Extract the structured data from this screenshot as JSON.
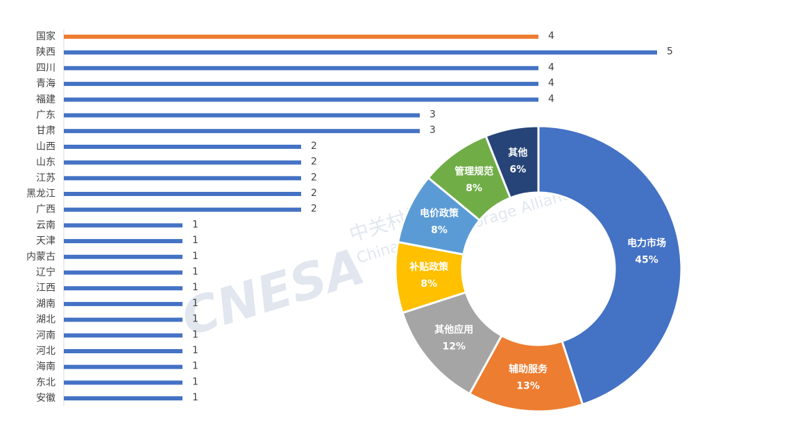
{
  "watermark": {
    "logo": "CNESA",
    "name": "中关村储能产业技术联盟",
    "english": "China Energy Storage Alliance"
  },
  "chart_data": [
    {
      "type": "bar",
      "orientation": "horizontal",
      "categories": [
        "国家",
        "陕西",
        "四川",
        "青海",
        "福建",
        "广东",
        "甘肃",
        "山西",
        "山东",
        "江苏",
        "黑龙江",
        "广西",
        "云南",
        "天津",
        "内蒙古",
        "辽宁",
        "江西",
        "湖南",
        "湖北",
        "河南",
        "河北",
        "海南",
        "东北",
        "安徽"
      ],
      "values": [
        4,
        5,
        4,
        4,
        4,
        3,
        3,
        2,
        2,
        2,
        2,
        2,
        1,
        1,
        1,
        1,
        1,
        1,
        1,
        1,
        1,
        1,
        1,
        1
      ],
      "colors": [
        "#ed7d31",
        "#4472c4",
        "#4472c4",
        "#4472c4",
        "#4472c4",
        "#4472c4",
        "#4472c4",
        "#4472c4",
        "#4472c4",
        "#4472c4",
        "#4472c4",
        "#4472c4",
        "#4472c4",
        "#4472c4",
        "#4472c4",
        "#4472c4",
        "#4472c4",
        "#4472c4",
        "#4472c4",
        "#4472c4",
        "#4472c4",
        "#4472c4",
        "#4472c4",
        "#4472c4"
      ],
      "xlim": [
        0,
        5
      ]
    },
    {
      "type": "donut",
      "categories": [
        "电力市场",
        "辅助服务",
        "其他应用",
        "补贴政策",
        "电价政策",
        "管理规范",
        "其他"
      ],
      "values": [
        45,
        13,
        12,
        8,
        8,
        8,
        6
      ],
      "value_labels": [
        "45%",
        "13%",
        "12%",
        "8%",
        "8%",
        "8%",
        "6%"
      ],
      "colors": [
        "#4472c4",
        "#ed7d31",
        "#a5a5a5",
        "#ffc000",
        "#5b9bd5",
        "#70ad47",
        "#264478"
      ]
    }
  ]
}
